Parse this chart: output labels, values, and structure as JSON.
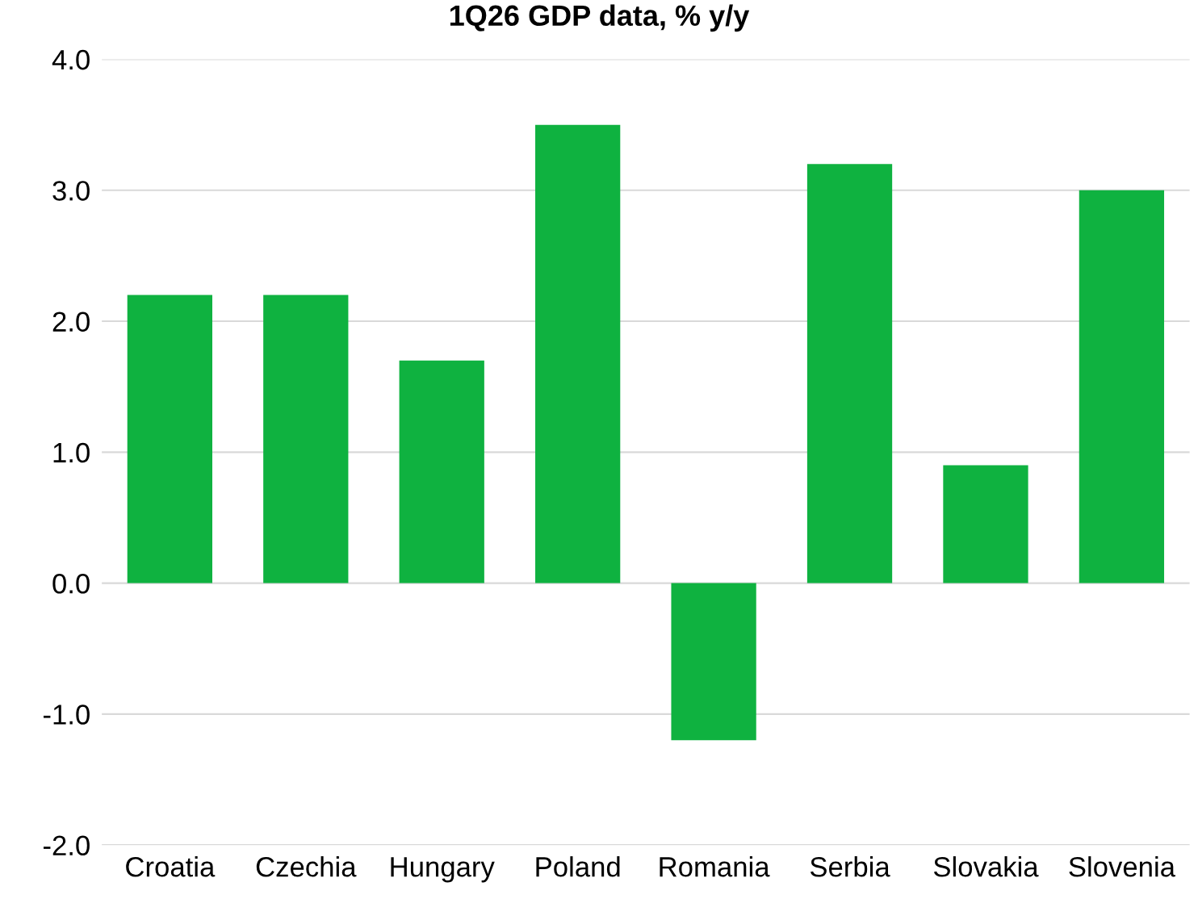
{
  "chart_data": {
    "type": "bar",
    "title": "1Q26 GDP data, % y/y",
    "categories": [
      "Croatia",
      "Czechia",
      "Hungary",
      "Poland",
      "Romania",
      "Serbia",
      "Slovakia",
      "Slovenia"
    ],
    "values": [
      2.2,
      2.2,
      1.7,
      3.5,
      -1.2,
      3.2,
      0.9,
      3.0
    ],
    "color": "#0fb240",
    "ylim": [
      -2,
      4
    ],
    "yticks": [
      {
        "value": -2,
        "label": "-2.0"
      },
      {
        "value": -1,
        "label": "-1.0"
      },
      {
        "value": 0,
        "label": "0.0"
      },
      {
        "value": 1,
        "label": "1.0"
      },
      {
        "value": 2,
        "label": "2.0"
      },
      {
        "value": 3,
        "label": "3.0"
      },
      {
        "value": 4,
        "label": "4.0"
      }
    ],
    "grid": "y",
    "legend": false
  }
}
